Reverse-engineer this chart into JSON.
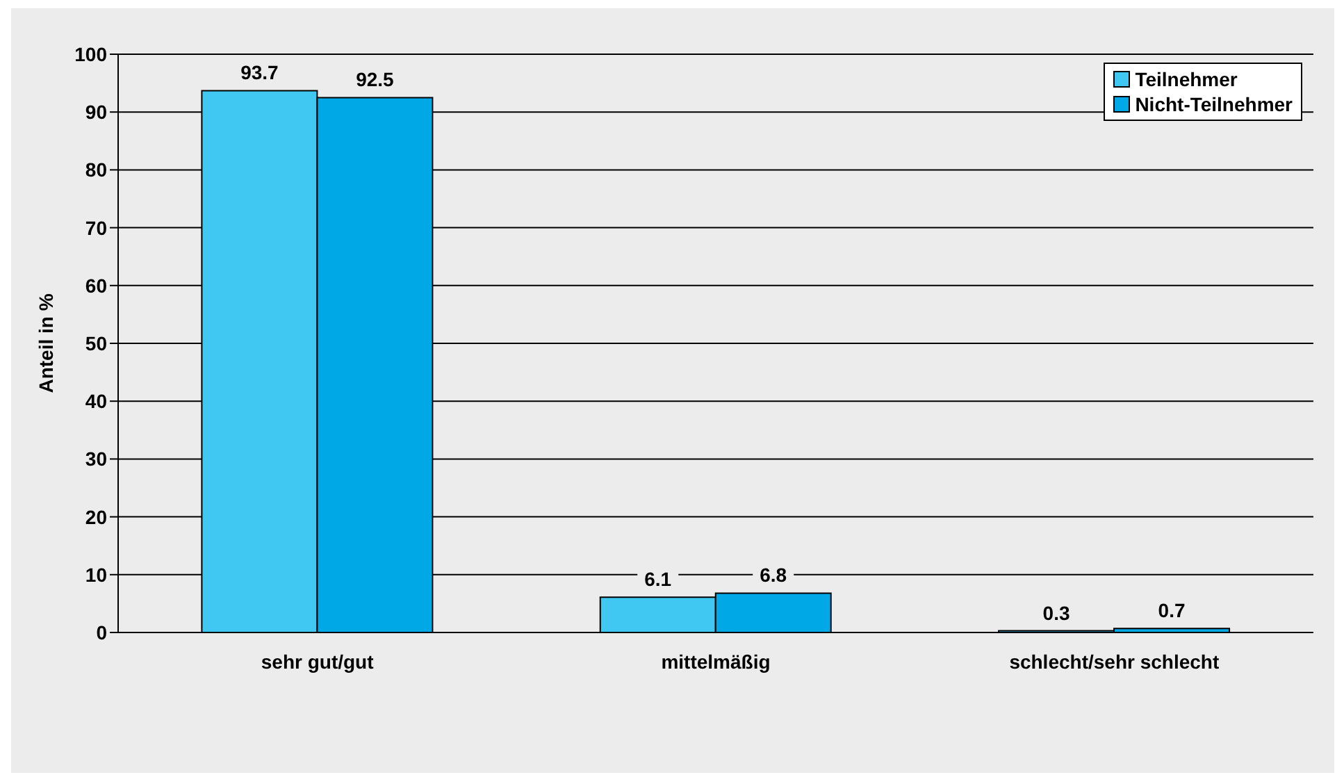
{
  "chart_data": {
    "type": "bar",
    "ylabel": "Anteil in %",
    "categories": [
      "sehr gut/gut",
      "mittelmäßig",
      "schlecht/sehr schlecht"
    ],
    "series": [
      {
        "name": "Teilnehmer",
        "color": "#40c8f2",
        "values": [
          93.7,
          6.1,
          0.3
        ]
      },
      {
        "name": "Nicht-Teilnehmer",
        "color": "#00a8e6",
        "values": [
          92.5,
          6.8,
          0.7
        ]
      }
    ],
    "ylim": [
      0,
      100
    ],
    "yticks": [
      0,
      10,
      20,
      30,
      40,
      50,
      60,
      70,
      80,
      90,
      100
    ],
    "grid": "y",
    "legend": "top right",
    "data_labels": true
  }
}
